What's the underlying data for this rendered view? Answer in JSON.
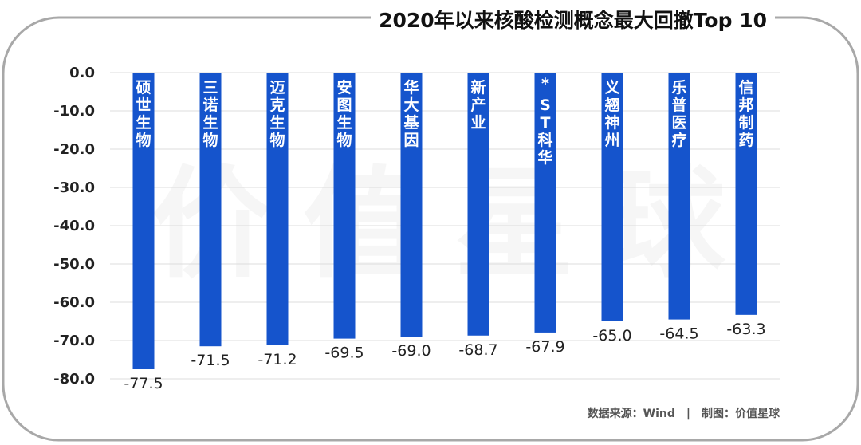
{
  "title": "2020年以来核酸检测概念最大回撤Top 10",
  "source": "数据来源：Wind",
  "credit": "制图：价值星球",
  "watermark": "价值星球",
  "colors": {
    "bar": "#1554cc",
    "frame": "#a8a8a8",
    "grid": "#dcdcdc"
  },
  "chart_data": {
    "type": "bar",
    "title": "2020年以来核酸检测概念最大回撤Top 10",
    "categories": [
      "硕世生物",
      "三诺生物",
      "迈克生物",
      "安图生物",
      "华大基因",
      "新产业",
      "*ST科华",
      "义翘神州",
      "乐普医疗",
      "信邦制药"
    ],
    "values": [
      -77.5,
      -71.5,
      -71.2,
      -69.5,
      -69.0,
      -68.7,
      -67.9,
      -65.0,
      -64.5,
      -63.3
    ],
    "yticks": [
      "0.0",
      "-10.0",
      "-20.0",
      "-30.0",
      "-40.0",
      "-50.0",
      "-60.0",
      "-70.0",
      "-80.0"
    ],
    "ylim": [
      -80,
      0
    ],
    "grid": true,
    "legend": "none"
  }
}
